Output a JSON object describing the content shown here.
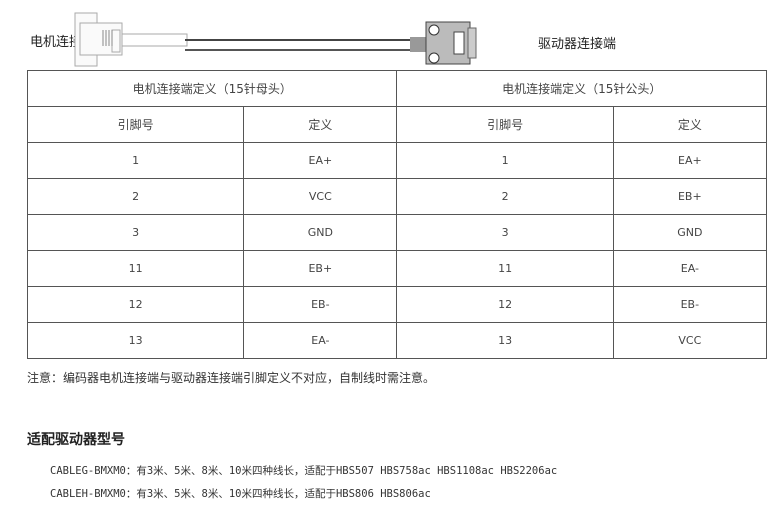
{
  "diagram": {
    "left_label": "电机连接端",
    "right_label": "驱动器连接端"
  },
  "table": {
    "group_headers": [
      "电机连接端定义（15针母头）",
      "电机连接端定义（15针公头）"
    ],
    "col_headers": [
      "引脚号",
      "定义",
      "引脚号",
      "定义"
    ],
    "rows": [
      [
        "1",
        "EA+",
        "1",
        "EA+"
      ],
      [
        "2",
        "VCC",
        "2",
        "EB+"
      ],
      [
        "3",
        "GND",
        "3",
        "GND"
      ],
      [
        "11",
        "EB+",
        "11",
        "EA-"
      ],
      [
        "12",
        "EB-",
        "12",
        "EB-"
      ],
      [
        "13",
        "EA-",
        "13",
        "VCC"
      ]
    ]
  },
  "note": "注意：编码器电机连接端与驱动器连接端引脚定义不对应，自制线时需注意。",
  "section_title": "适配驱动器型号",
  "models": [
    "CABLEG-BMXM0：有3米、5米、8米、10米四种线长，适配于HBS507   HBS758ac  HBS1108ac   HBS2206ac",
    "CABLEH-BMXM0：有3米、5米、8米、10米四种线长，适配于HBS806   HBS806ac"
  ]
}
